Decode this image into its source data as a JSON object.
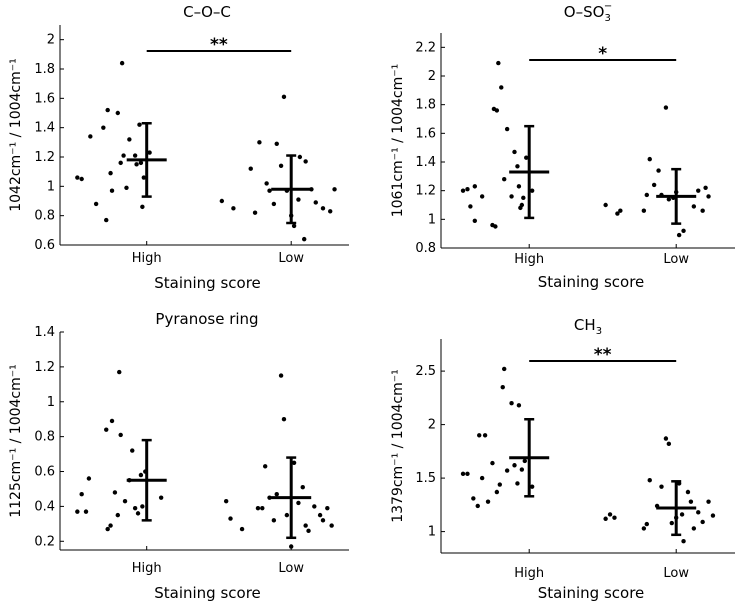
{
  "chart_data": [
    {
      "type": "scatter",
      "title": "C–O–C",
      "xlabel": "Staining score",
      "ylabel": "1042cm⁻¹ / 1004cm⁻¹",
      "categories": [
        "High",
        "Low"
      ],
      "ylim": [
        0.6,
        2.1
      ],
      "yticks": [
        "0.6",
        "0.8",
        "1",
        "1.2",
        "1.4",
        "1.6",
        "1.8",
        "2"
      ],
      "groups": [
        {
          "name": "High",
          "mean": 1.18,
          "sd": 0.25,
          "points": [
            [
              0.52,
              1.06
            ],
            [
              0.55,
              1.05
            ],
            [
              0.61,
              1.34
            ],
            [
              0.65,
              0.88
            ],
            [
              0.7,
              1.4
            ],
            [
              0.72,
              0.77
            ],
            [
              0.73,
              1.52
            ],
            [
              0.75,
              1.09
            ],
            [
              0.76,
              0.97
            ],
            [
              0.8,
              1.5
            ],
            [
              0.82,
              1.16
            ],
            [
              0.83,
              1.84
            ],
            [
              0.84,
              1.21
            ],
            [
              0.86,
              0.99
            ],
            [
              0.88,
              1.32
            ],
            [
              0.92,
              1.21
            ],
            [
              0.93,
              1.15
            ],
            [
              0.95,
              1.42
            ],
            [
              0.96,
              1.16
            ],
            [
              0.98,
              1.06
            ],
            [
              0.97,
              0.86
            ],
            [
              1.02,
              1.23
            ]
          ]
        },
        {
          "name": "Low",
          "mean": 0.98,
          "sd": 0.23,
          "points": [
            [
              1.52,
              0.9
            ],
            [
              1.6,
              0.85
            ],
            [
              1.72,
              1.12
            ],
            [
              1.75,
              0.82
            ],
            [
              1.78,
              1.3
            ],
            [
              1.83,
              1.02
            ],
            [
              1.85,
              0.97
            ],
            [
              1.88,
              0.88
            ],
            [
              1.9,
              1.29
            ],
            [
              1.95,
              1.61
            ],
            [
              1.93,
              1.14
            ],
            [
              1.97,
              0.97
            ],
            [
              2.0,
              0.8
            ],
            [
              2.02,
              0.73
            ],
            [
              2.05,
              0.91
            ],
            [
              2.06,
              1.2
            ],
            [
              2.09,
              0.64
            ],
            [
              2.1,
              1.17
            ],
            [
              2.14,
              0.98
            ],
            [
              2.17,
              0.89
            ],
            [
              2.22,
              0.85
            ],
            [
              2.27,
              0.83
            ],
            [
              2.3,
              0.98
            ]
          ]
        }
      ],
      "significance": {
        "label": "**",
        "between": [
          "High",
          "Low"
        ]
      }
    },
    {
      "type": "scatter",
      "title": "O–SO",
      "title_sub": "3",
      "title_sup": "−",
      "xlabel": "Staining score",
      "ylabel": "1061cm⁻¹ / 1004cm⁻¹",
      "categories": [
        "High",
        "Low"
      ],
      "ylim": [
        0.8,
        2.3
      ],
      "yticks": [
        "0.8",
        "1",
        "1.2",
        "1.4",
        "1.6",
        "1.8",
        "2",
        "2.2"
      ],
      "groups": [
        {
          "name": "High",
          "mean": 1.33,
          "sd": 0.32,
          "points": [
            [
              0.55,
              1.2
            ],
            [
              0.58,
              1.21
            ],
            [
              0.6,
              1.09
            ],
            [
              0.63,
              1.23
            ],
            [
              0.63,
              0.99
            ],
            [
              0.68,
              1.16
            ],
            [
              0.75,
              0.96
            ],
            [
              0.76,
              1.77
            ],
            [
              0.77,
              0.95
            ],
            [
              0.78,
              1.76
            ],
            [
              0.79,
              2.09
            ],
            [
              0.81,
              1.92
            ],
            [
              0.83,
              1.28
            ],
            [
              0.85,
              1.63
            ],
            [
              0.88,
              1.16
            ],
            [
              0.9,
              1.47
            ],
            [
              0.92,
              1.37
            ],
            [
              0.93,
              1.23
            ],
            [
              0.94,
              1.08
            ],
            [
              0.95,
              1.1
            ],
            [
              0.96,
              1.15
            ],
            [
              0.98,
              1.43
            ],
            [
              1.02,
              1.2
            ]
          ]
        },
        {
          "name": "Low",
          "mean": 1.16,
          "sd": 0.19,
          "points": [
            [
              1.52,
              1.1
            ],
            [
              1.6,
              1.04
            ],
            [
              1.62,
              1.06
            ],
            [
              1.78,
              1.06
            ],
            [
              1.8,
              1.17
            ],
            [
              1.82,
              1.42
            ],
            [
              1.85,
              1.24
            ],
            [
              1.88,
              1.34
            ],
            [
              1.9,
              1.17
            ],
            [
              1.93,
              1.78
            ],
            [
              1.95,
              1.14
            ],
            [
              1.98,
              1.15
            ],
            [
              2.0,
              1.19
            ],
            [
              2.02,
              0.89
            ],
            [
              2.05,
              0.92
            ],
            [
              2.12,
              1.09
            ],
            [
              2.15,
              1.2
            ],
            [
              2.18,
              1.06
            ],
            [
              2.2,
              1.22
            ],
            [
              2.22,
              1.16
            ]
          ]
        }
      ],
      "significance": {
        "label": "*",
        "between": [
          "High",
          "Low"
        ]
      }
    },
    {
      "type": "scatter",
      "title": "Pyranose ring",
      "xlabel": "Staining score",
      "ylabel": "1125cm⁻¹ / 1004cm⁻¹",
      "categories": [
        "High",
        "Low"
      ],
      "ylim": [
        0.15,
        1.4
      ],
      "yticks": [
        "0.2",
        "0.4",
        "0.6",
        "0.8",
        "1",
        "1.2",
        "1.4"
      ],
      "groups": [
        {
          "name": "High",
          "mean": 0.55,
          "sd": 0.23,
          "points": [
            [
              0.52,
              0.37
            ],
            [
              0.55,
              0.47
            ],
            [
              0.58,
              0.37
            ],
            [
              0.6,
              0.56
            ],
            [
              0.72,
              0.84
            ],
            [
              0.73,
              0.27
            ],
            [
              0.75,
              0.29
            ],
            [
              0.76,
              0.89
            ],
            [
              0.78,
              0.48
            ],
            [
              0.8,
              0.35
            ],
            [
              0.81,
              1.17
            ],
            [
              0.82,
              0.81
            ],
            [
              0.85,
              0.43
            ],
            [
              0.88,
              0.55
            ],
            [
              0.9,
              0.72
            ],
            [
              0.92,
              0.39
            ],
            [
              0.94,
              0.36
            ],
            [
              0.96,
              0.58
            ],
            [
              0.97,
              0.4
            ],
            [
              0.99,
              0.6
            ],
            [
              1.1,
              0.45
            ]
          ]
        },
        {
          "name": "Low",
          "mean": 0.45,
          "sd": 0.23,
          "points": [
            [
              1.55,
              0.43
            ],
            [
              1.58,
              0.33
            ],
            [
              1.66,
              0.27
            ],
            [
              1.77,
              0.39
            ],
            [
              1.8,
              0.39
            ],
            [
              1.82,
              0.63
            ],
            [
              1.85,
              0.45
            ],
            [
              1.88,
              0.32
            ],
            [
              1.9,
              0.47
            ],
            [
              1.93,
              1.15
            ],
            [
              1.95,
              0.9
            ],
            [
              1.97,
              0.35
            ],
            [
              2.0,
              0.17
            ],
            [
              2.02,
              0.65
            ],
            [
              2.05,
              0.42
            ],
            [
              2.08,
              0.51
            ],
            [
              2.1,
              0.29
            ],
            [
              2.12,
              0.26
            ],
            [
              2.16,
              0.4
            ],
            [
              2.2,
              0.35
            ],
            [
              2.22,
              0.32
            ],
            [
              2.25,
              0.39
            ],
            [
              2.28,
              0.29
            ]
          ]
        }
      ]
    },
    {
      "type": "scatter",
      "title": "CH",
      "title_sub": "3",
      "xlabel": "Staining score",
      "ylabel": "1379cm⁻¹ / 1004cm⁻¹",
      "categories": [
        "High",
        "Low"
      ],
      "ylim": [
        0.8,
        2.8
      ],
      "yticks": [
        "1",
        "1.5",
        "2",
        "2.5"
      ],
      "groups": [
        {
          "name": "High",
          "mean": 1.69,
          "sd": 0.36,
          "points": [
            [
              0.55,
              1.54
            ],
            [
              0.58,
              1.54
            ],
            [
              0.62,
              1.31
            ],
            [
              0.65,
              1.24
            ],
            [
              0.66,
              1.9
            ],
            [
              0.68,
              1.5
            ],
            [
              0.7,
              1.9
            ],
            [
              0.72,
              1.28
            ],
            [
              0.75,
              1.64
            ],
            [
              0.78,
              1.37
            ],
            [
              0.8,
              1.44
            ],
            [
              0.82,
              2.35
            ],
            [
              0.83,
              2.52
            ],
            [
              0.85,
              1.57
            ],
            [
              0.88,
              2.2
            ],
            [
              0.9,
              1.62
            ],
            [
              0.92,
              1.45
            ],
            [
              0.95,
              1.58
            ],
            [
              0.97,
              1.66
            ],
            [
              1.02,
              1.42
            ],
            [
              0.93,
              2.18
            ]
          ]
        },
        {
          "name": "Low",
          "mean": 1.22,
          "sd": 0.25,
          "points": [
            [
              1.52,
              1.12
            ],
            [
              1.55,
              1.16
            ],
            [
              1.58,
              1.13
            ],
            [
              1.78,
              1.03
            ],
            [
              1.8,
              1.07
            ],
            [
              1.82,
              1.48
            ],
            [
              1.87,
              1.24
            ],
            [
              1.9,
              1.42
            ],
            [
              1.93,
              1.87
            ],
            [
              1.95,
              1.82
            ],
            [
              1.97,
              1.08
            ],
            [
              2.0,
              1.13
            ],
            [
              2.02,
              1.45
            ],
            [
              2.04,
              1.16
            ],
            [
              2.05,
              0.91
            ],
            [
              2.08,
              1.37
            ],
            [
              2.1,
              1.28
            ],
            [
              2.12,
              1.03
            ],
            [
              2.15,
              1.18
            ],
            [
              2.18,
              1.09
            ],
            [
              2.22,
              1.28
            ],
            [
              2.25,
              1.15
            ]
          ]
        }
      ],
      "significance": {
        "label": "**",
        "between": [
          "High",
          "Low"
        ]
      }
    }
  ]
}
